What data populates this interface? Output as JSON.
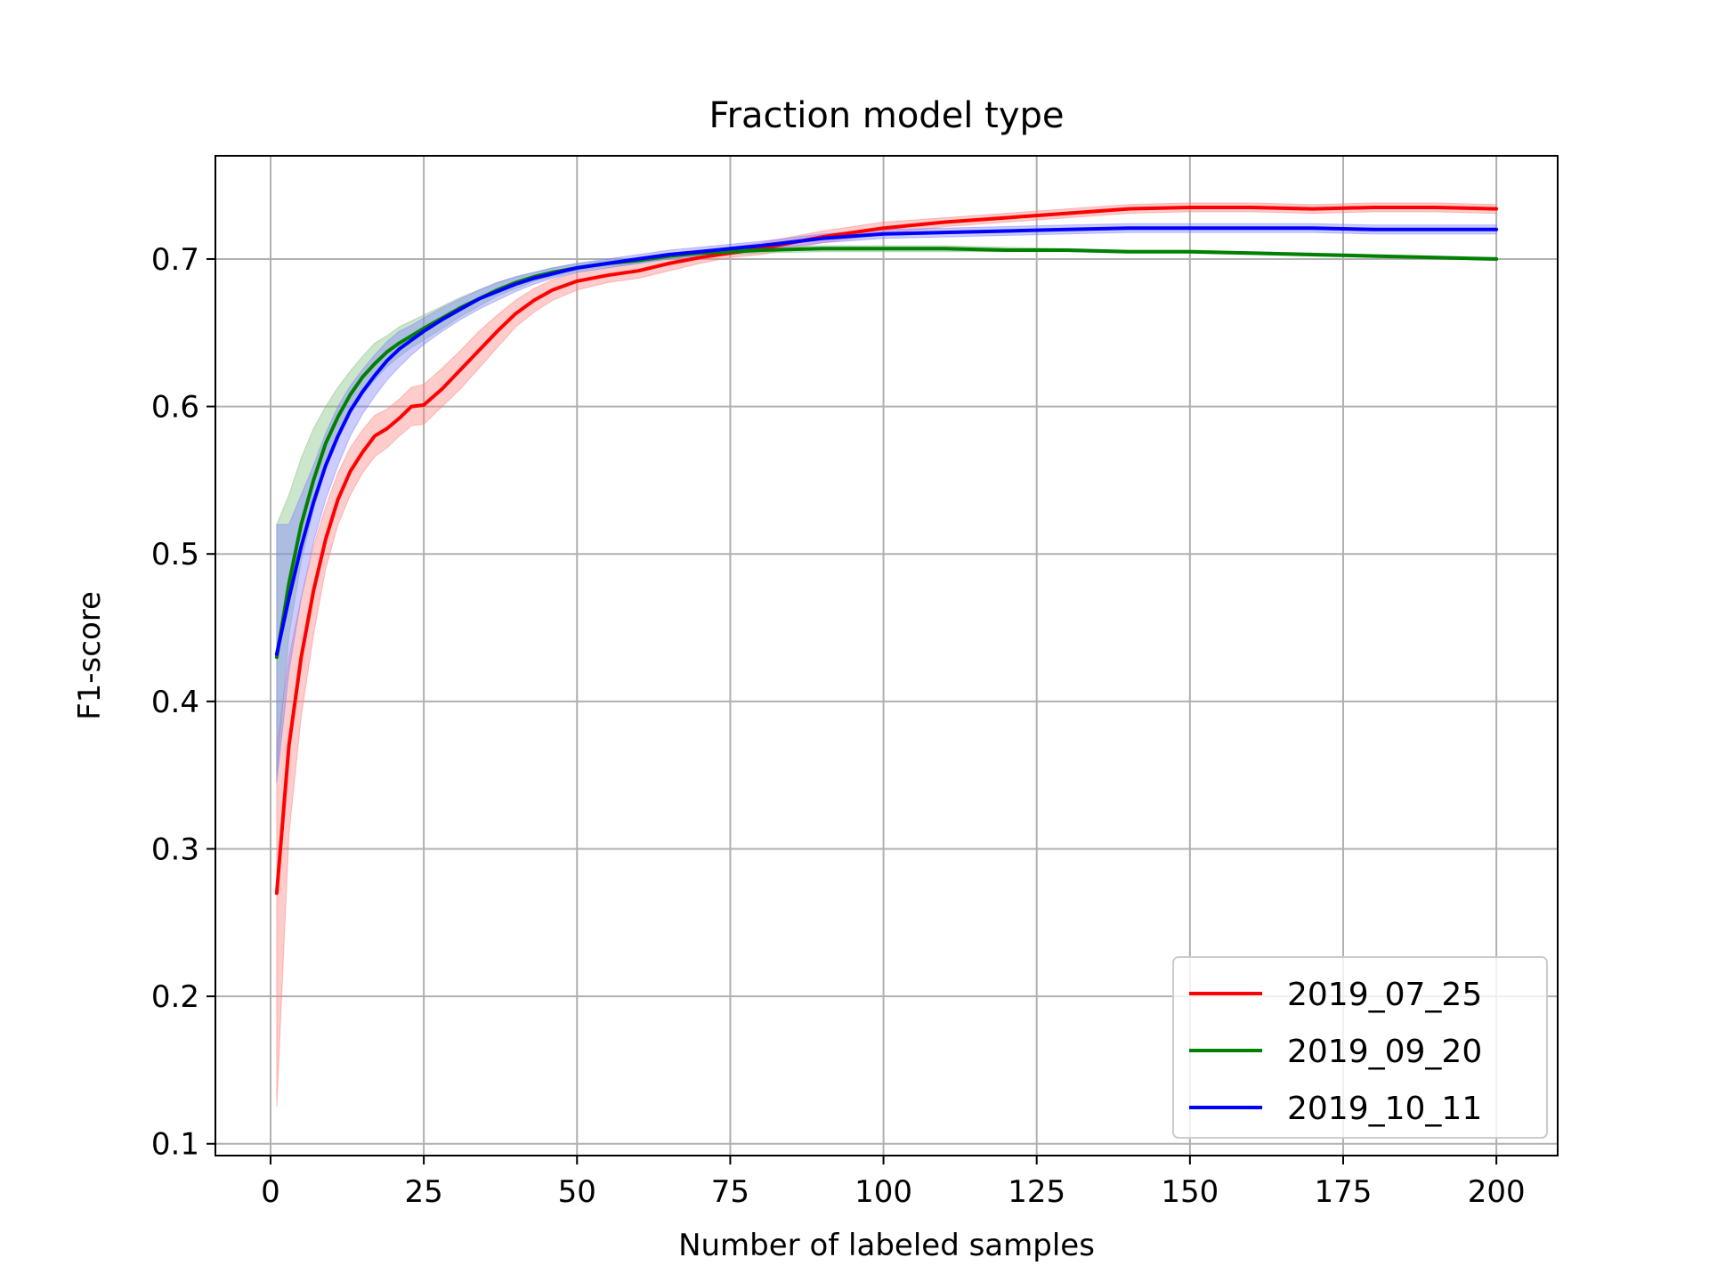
{
  "chart_data": {
    "type": "line",
    "title": "Fraction model type",
    "xlabel": "Number of labeled samples",
    "ylabel": "F1-score",
    "xlim": [
      -9,
      210
    ],
    "ylim": [
      0.092,
      0.77
    ],
    "x_ticks": [
      0,
      25,
      50,
      75,
      100,
      125,
      150,
      175,
      200
    ],
    "y_ticks": [
      0.1,
      0.2,
      0.3,
      0.4,
      0.5,
      0.6,
      0.7
    ],
    "x_tick_labels": [
      "0",
      "25",
      "50",
      "75",
      "100",
      "125",
      "150",
      "175",
      "200"
    ],
    "y_tick_labels": [
      "0.1",
      "0.2",
      "0.3",
      "0.4",
      "0.5",
      "0.6",
      "0.7"
    ],
    "grid": true,
    "legend_position": "lower-right",
    "series": [
      {
        "name": "2019_07_25",
        "color": "#ff0000",
        "band_color": "#ff8080",
        "x": [
          1,
          3,
          5,
          7,
          9,
          11,
          13,
          15,
          17,
          19,
          21,
          23,
          25,
          28,
          31,
          34,
          37,
          40,
          43,
          46,
          50,
          55,
          60,
          65,
          70,
          75,
          80,
          90,
          100,
          110,
          120,
          130,
          140,
          150,
          160,
          170,
          180,
          190,
          200
        ],
        "values": [
          0.27,
          0.37,
          0.43,
          0.475,
          0.51,
          0.537,
          0.556,
          0.569,
          0.58,
          0.585,
          0.592,
          0.6,
          0.601,
          0.612,
          0.625,
          0.638,
          0.651,
          0.663,
          0.672,
          0.679,
          0.685,
          0.689,
          0.692,
          0.697,
          0.701,
          0.704,
          0.707,
          0.715,
          0.721,
          0.725,
          0.728,
          0.731,
          0.734,
          0.735,
          0.735,
          0.734,
          0.735,
          0.735,
          0.734
        ],
        "lower": [
          0.125,
          0.31,
          0.39,
          0.445,
          0.49,
          0.52,
          0.54,
          0.555,
          0.566,
          0.572,
          0.58,
          0.587,
          0.588,
          0.6,
          0.612,
          0.626,
          0.64,
          0.654,
          0.664,
          0.672,
          0.679,
          0.684,
          0.687,
          0.692,
          0.697,
          0.701,
          0.703,
          0.711,
          0.717,
          0.722,
          0.725,
          0.728,
          0.731,
          0.732,
          0.732,
          0.731,
          0.732,
          0.732,
          0.731
        ],
        "upper": [
          0.37,
          0.43,
          0.47,
          0.505,
          0.532,
          0.555,
          0.572,
          0.584,
          0.594,
          0.598,
          0.605,
          0.613,
          0.615,
          0.626,
          0.638,
          0.651,
          0.662,
          0.672,
          0.68,
          0.686,
          0.691,
          0.694,
          0.697,
          0.701,
          0.705,
          0.708,
          0.711,
          0.719,
          0.725,
          0.728,
          0.731,
          0.734,
          0.737,
          0.738,
          0.738,
          0.737,
          0.738,
          0.738,
          0.737
        ]
      },
      {
        "name": "2019_09_20",
        "color": "#008000",
        "band_color": "#80c080",
        "x": [
          1,
          3,
          5,
          7,
          9,
          11,
          13,
          15,
          17,
          19,
          21,
          23,
          25,
          28,
          31,
          34,
          37,
          40,
          43,
          46,
          50,
          55,
          60,
          65,
          70,
          75,
          80,
          90,
          100,
          110,
          120,
          130,
          140,
          150,
          160,
          170,
          180,
          190,
          200
        ],
        "values": [
          0.43,
          0.48,
          0.52,
          0.55,
          0.575,
          0.593,
          0.608,
          0.62,
          0.629,
          0.637,
          0.643,
          0.648,
          0.653,
          0.66,
          0.667,
          0.673,
          0.679,
          0.684,
          0.688,
          0.691,
          0.694,
          0.697,
          0.699,
          0.702,
          0.704,
          0.705,
          0.706,
          0.707,
          0.707,
          0.707,
          0.706,
          0.706,
          0.705,
          0.705,
          0.704,
          0.703,
          0.702,
          0.701,
          0.7
        ],
        "lower": [
          0.35,
          0.445,
          0.495,
          0.53,
          0.558,
          0.578,
          0.595,
          0.608,
          0.618,
          0.627,
          0.634,
          0.64,
          0.645,
          0.653,
          0.661,
          0.668,
          0.675,
          0.68,
          0.685,
          0.688,
          0.692,
          0.695,
          0.697,
          0.7,
          0.702,
          0.703,
          0.704,
          0.705,
          0.705,
          0.705,
          0.705,
          0.705,
          0.704,
          0.704,
          0.703,
          0.702,
          0.701,
          0.7,
          0.699
        ],
        "upper": [
          0.52,
          0.54,
          0.565,
          0.585,
          0.6,
          0.613,
          0.624,
          0.634,
          0.643,
          0.648,
          0.654,
          0.658,
          0.662,
          0.668,
          0.674,
          0.679,
          0.684,
          0.688,
          0.691,
          0.694,
          0.697,
          0.699,
          0.701,
          0.704,
          0.706,
          0.707,
          0.708,
          0.709,
          0.709,
          0.709,
          0.708,
          0.707,
          0.706,
          0.706,
          0.705,
          0.704,
          0.703,
          0.702,
          0.701
        ]
      },
      {
        "name": "2019_10_11",
        "color": "#0000ff",
        "band_color": "#8080ff",
        "x": [
          1,
          3,
          5,
          7,
          9,
          11,
          13,
          15,
          17,
          19,
          21,
          23,
          25,
          28,
          31,
          34,
          37,
          40,
          43,
          46,
          50,
          55,
          60,
          65,
          70,
          75,
          80,
          90,
          100,
          110,
          120,
          130,
          140,
          150,
          160,
          170,
          180,
          190,
          200
        ],
        "values": [
          0.432,
          0.47,
          0.505,
          0.535,
          0.56,
          0.58,
          0.597,
          0.61,
          0.621,
          0.631,
          0.639,
          0.645,
          0.651,
          0.659,
          0.666,
          0.673,
          0.678,
          0.683,
          0.687,
          0.69,
          0.694,
          0.697,
          0.7,
          0.703,
          0.705,
          0.707,
          0.709,
          0.714,
          0.717,
          0.718,
          0.719,
          0.72,
          0.721,
          0.721,
          0.721,
          0.721,
          0.72,
          0.72,
          0.72
        ],
        "lower": [
          0.345,
          0.42,
          0.47,
          0.508,
          0.537,
          0.56,
          0.58,
          0.595,
          0.607,
          0.618,
          0.627,
          0.635,
          0.642,
          0.651,
          0.659,
          0.666,
          0.672,
          0.678,
          0.683,
          0.687,
          0.691,
          0.694,
          0.697,
          0.7,
          0.702,
          0.704,
          0.706,
          0.711,
          0.714,
          0.715,
          0.716,
          0.717,
          0.718,
          0.718,
          0.718,
          0.718,
          0.717,
          0.717,
          0.717
        ],
        "upper": [
          0.52,
          0.52,
          0.54,
          0.56,
          0.582,
          0.6,
          0.614,
          0.625,
          0.635,
          0.644,
          0.651,
          0.655,
          0.66,
          0.667,
          0.673,
          0.679,
          0.684,
          0.688,
          0.691,
          0.694,
          0.697,
          0.7,
          0.703,
          0.706,
          0.708,
          0.71,
          0.712,
          0.717,
          0.72,
          0.721,
          0.722,
          0.723,
          0.724,
          0.724,
          0.724,
          0.724,
          0.723,
          0.723,
          0.723
        ]
      }
    ]
  }
}
